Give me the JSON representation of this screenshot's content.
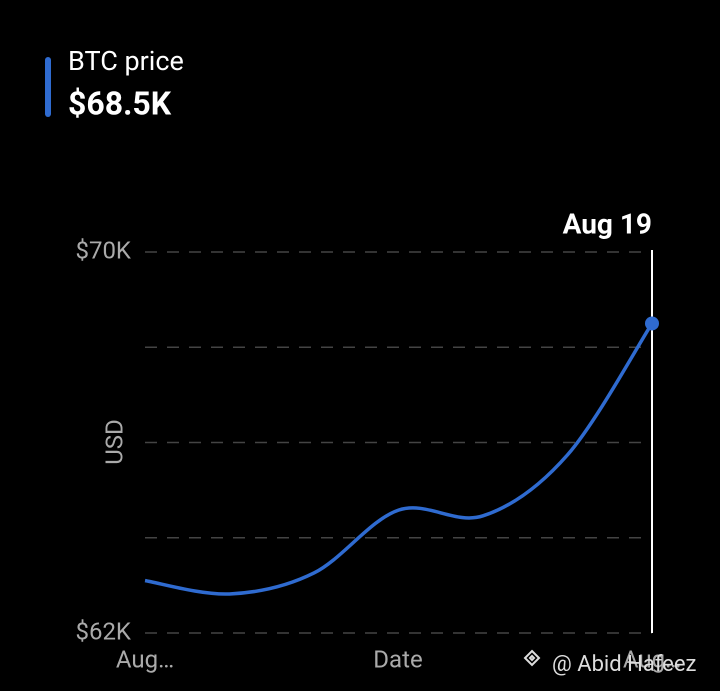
{
  "chart_data": {
    "type": "line",
    "categories": [
      "Aug…",
      null,
      null,
      null,
      null,
      null,
      "Aug…"
    ],
    "series": [
      {
        "name": "BTC price",
        "color": "#2f6bd0",
        "values": [
          63100,
          62820,
          63260,
          64580,
          64460,
          65740,
          68500
        ],
        "value_labels": [
          null,
          null,
          null,
          null,
          null,
          null,
          "$68.5K"
        ]
      }
    ],
    "annotation": "Aug 19",
    "ylabel": "USD",
    "xlabel": "Date",
    "ylim": [
      62000,
      70000
    ],
    "yticks": [
      {
        "value": 62000,
        "label": "$62K"
      },
      {
        "value": 64000,
        "label": null
      },
      {
        "value": 66000,
        "label": null
      },
      {
        "value": 68000,
        "label": null
      },
      {
        "value": 70000,
        "label": "$70K"
      }
    ],
    "grid": true,
    "watermark": "@ Abid Hafeez"
  }
}
